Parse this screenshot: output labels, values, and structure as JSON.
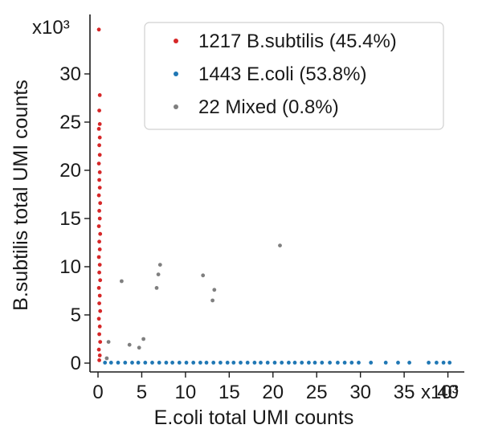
{
  "chart_data": {
    "type": "scatter",
    "xlabel": "E.coli total UMI counts",
    "ylabel": "B.subtilis total UMI counts",
    "x_multiplier_label": "x10³",
    "y_multiplier_label": "x10³",
    "xlim": [
      0,
      40.5
    ],
    "ylim": [
      0,
      35
    ],
    "x_ticks": [
      0,
      5,
      10,
      15,
      20,
      25,
      30,
      35,
      40
    ],
    "y_ticks": [
      0,
      5,
      10,
      15,
      20,
      25,
      30
    ],
    "x_tick_labels": [
      "0",
      "5",
      "10",
      "15",
      "20",
      "25",
      "30",
      "35",
      "40"
    ],
    "y_tick_labels": [
      "0",
      "5",
      "10",
      "15",
      "20",
      "25",
      "30"
    ],
    "legend_position": "top-right",
    "series": [
      {
        "name": "B.subtilis",
        "legend_label": "1217 B.subtilis (45.4%)",
        "color": "#d62728",
        "points": [
          [
            0.1,
            34.6
          ],
          [
            0.2,
            27.8
          ],
          [
            0.15,
            26.2
          ],
          [
            0.2,
            24.8
          ],
          [
            0.1,
            24.3
          ],
          [
            0.2,
            23.4
          ],
          [
            0.15,
            22.6
          ],
          [
            0.2,
            21.6
          ],
          [
            0.1,
            20.7
          ],
          [
            0.2,
            19.8
          ],
          [
            0.15,
            19.0
          ],
          [
            0.2,
            18.2
          ],
          [
            0.1,
            17.4
          ],
          [
            0.25,
            16.6
          ],
          [
            0.15,
            15.8
          ],
          [
            0.2,
            15.0
          ],
          [
            0.1,
            14.2
          ],
          [
            0.25,
            13.4
          ],
          [
            0.15,
            12.6
          ],
          [
            0.2,
            11.8
          ],
          [
            0.1,
            11.0
          ],
          [
            0.2,
            10.2
          ],
          [
            0.15,
            9.4
          ],
          [
            0.25,
            8.6
          ],
          [
            0.1,
            7.8
          ],
          [
            0.2,
            7.0
          ],
          [
            0.15,
            6.2
          ],
          [
            0.25,
            5.4
          ],
          [
            0.1,
            4.6
          ],
          [
            0.2,
            3.8
          ],
          [
            0.15,
            3.0
          ],
          [
            0.25,
            2.2
          ],
          [
            0.1,
            1.4
          ],
          [
            0.2,
            0.8
          ],
          [
            0.15,
            0.3
          ]
        ]
      },
      {
        "name": "E.coli",
        "legend_label": "1443 E.coli (53.8%)",
        "color": "#1f77b4",
        "points": [
          [
            0.8,
            0.05
          ],
          [
            1.5,
            0.05
          ],
          [
            2.3,
            0.05
          ],
          [
            3.1,
            0.05
          ],
          [
            3.9,
            0.05
          ],
          [
            4.6,
            0.05
          ],
          [
            5.4,
            0.05
          ],
          [
            6.2,
            0.05
          ],
          [
            7.0,
            0.05
          ],
          [
            7.8,
            0.05
          ],
          [
            8.5,
            0.05
          ],
          [
            9.3,
            0.05
          ],
          [
            10.1,
            0.05
          ],
          [
            10.9,
            0.05
          ],
          [
            11.7,
            0.05
          ],
          [
            12.4,
            0.05
          ],
          [
            13.2,
            0.05
          ],
          [
            14.0,
            0.05
          ],
          [
            14.8,
            0.05
          ],
          [
            15.5,
            0.05
          ],
          [
            16.3,
            0.05
          ],
          [
            17.1,
            0.05
          ],
          [
            17.9,
            0.05
          ],
          [
            18.6,
            0.05
          ],
          [
            19.4,
            0.05
          ],
          [
            20.2,
            0.05
          ],
          [
            21.0,
            0.05
          ],
          [
            21.8,
            0.05
          ],
          [
            22.5,
            0.05
          ],
          [
            23.3,
            0.05
          ],
          [
            24.1,
            0.05
          ],
          [
            24.8,
            0.05
          ],
          [
            25.6,
            0.05
          ],
          [
            26.5,
            0.05
          ],
          [
            27.4,
            0.05
          ],
          [
            28.2,
            0.05
          ],
          [
            29.0,
            0.05
          ],
          [
            29.8,
            0.05
          ],
          [
            31.2,
            0.05
          ],
          [
            32.9,
            0.05
          ],
          [
            34.3,
            0.05
          ],
          [
            35.6,
            0.05
          ],
          [
            37.8,
            0.05
          ],
          [
            38.7,
            0.05
          ],
          [
            39.5,
            0.05
          ],
          [
            40.2,
            0.05
          ]
        ]
      },
      {
        "name": "Mixed",
        "legend_label": "22 Mixed (0.8%)",
        "color": "#7f7f7f",
        "points": [
          [
            1.0,
            0.5
          ],
          [
            1.2,
            2.2
          ],
          [
            2.7,
            8.5
          ],
          [
            3.6,
            1.9
          ],
          [
            4.7,
            1.6
          ],
          [
            5.2,
            2.5
          ],
          [
            6.7,
            7.8
          ],
          [
            6.9,
            9.2
          ],
          [
            7.1,
            10.2
          ],
          [
            12.0,
            9.1
          ],
          [
            13.1,
            6.5
          ],
          [
            13.3,
            7.6
          ],
          [
            20.8,
            12.2
          ]
        ]
      }
    ]
  }
}
